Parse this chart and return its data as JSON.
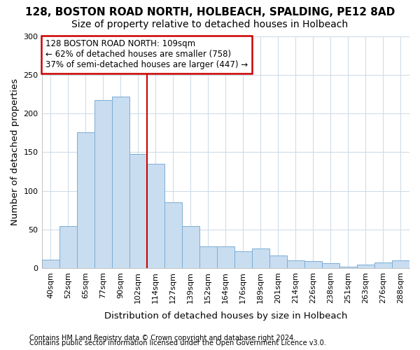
{
  "title": "128, BOSTON ROAD NORTH, HOLBEACH, SPALDING, PE12 8AD",
  "subtitle": "Size of property relative to detached houses in Holbeach",
  "xlabel": "Distribution of detached houses by size in Holbeach",
  "ylabel": "Number of detached properties",
  "categories": [
    "40sqm",
    "52sqm",
    "65sqm",
    "77sqm",
    "90sqm",
    "102sqm",
    "114sqm",
    "127sqm",
    "139sqm",
    "152sqm",
    "164sqm",
    "176sqm",
    "189sqm",
    "201sqm",
    "214sqm",
    "226sqm",
    "238sqm",
    "251sqm",
    "263sqm",
    "276sqm",
    "288sqm"
  ],
  "values": [
    11,
    55,
    176,
    217,
    222,
    148,
    135,
    85,
    55,
    28,
    28,
    22,
    26,
    17,
    10,
    9,
    7,
    2,
    5,
    8,
    10
  ],
  "bar_color": "#c9ddf0",
  "bar_edge_color": "#7aadd4",
  "annotation_text_line1": "128 BOSTON ROAD NORTH: 109sqm",
  "annotation_text_line2": "← 62% of detached houses are smaller (758)",
  "annotation_text_line3": "37% of semi-detached houses are larger (447) →",
  "annotation_box_facecolor": "#ffffff",
  "annotation_box_edgecolor": "#cc0000",
  "vline_color": "#cc0000",
  "vline_bar_index": 5,
  "ylim": [
    0,
    300
  ],
  "yticks": [
    0,
    50,
    100,
    150,
    200,
    250,
    300
  ],
  "bg_color": "#ffffff",
  "plot_bg_color": "#ffffff",
  "grid_color": "#d0dce8",
  "footer_line1": "Contains HM Land Registry data © Crown copyright and database right 2024.",
  "footer_line2": "Contains public sector information licensed under the Open Government Licence v3.0.",
  "title_fontsize": 11,
  "subtitle_fontsize": 10,
  "axis_label_fontsize": 9.5,
  "tick_fontsize": 8,
  "annotation_fontsize": 8.5,
  "footer_fontsize": 7
}
